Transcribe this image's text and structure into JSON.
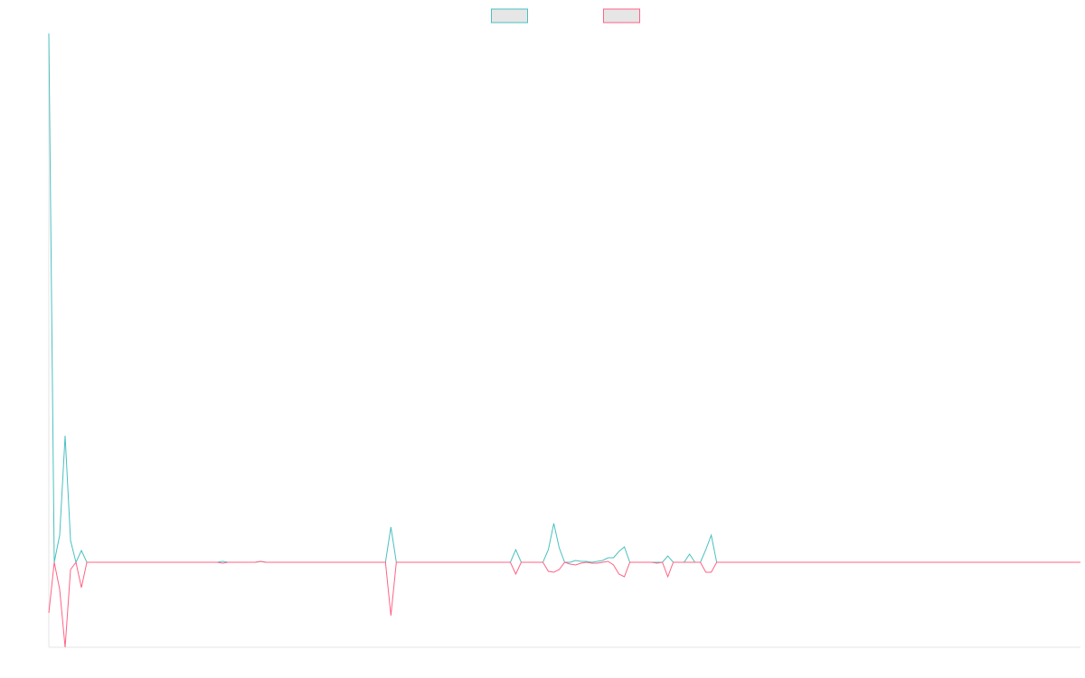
{
  "chart_data": {
    "type": "line",
    "ylim": [
      -94,
      585
    ],
    "legend": "top",
    "series": [
      {
        "color": "#4bc0c0",
        "values": [
          585,
          0,
          30,
          140,
          24,
          0,
          13,
          0,
          0,
          0,
          0,
          0,
          0,
          0,
          0,
          0,
          0,
          0,
          0,
          0,
          0,
          0,
          0,
          0,
          0,
          0,
          0,
          0,
          0,
          0,
          0,
          0,
          1,
          0,
          0,
          0,
          0,
          0,
          0,
          1,
          0,
          0,
          0,
          0,
          0,
          0,
          0,
          0,
          0,
          0,
          0,
          0,
          0,
          0,
          0,
          0,
          0,
          0,
          0,
          0,
          0,
          0,
          0,
          39,
          0,
          0,
          0,
          0,
          0,
          0,
          0,
          0,
          0,
          0,
          0,
          0,
          0,
          0,
          0,
          0,
          0,
          0,
          0,
          0,
          0,
          0,
          14,
          0,
          0,
          0,
          0,
          0,
          14,
          43,
          16,
          0,
          0,
          2,
          1,
          1,
          0,
          1,
          2,
          5,
          5,
          12,
          17,
          0,
          0,
          0,
          0,
          0,
          0,
          0,
          7,
          0,
          0,
          0,
          9,
          0,
          0,
          14,
          30,
          0,
          0,
          0,
          0,
          0,
          0,
          0,
          0,
          0,
          0,
          0,
          0,
          0,
          0,
          0,
          0,
          0,
          0,
          0,
          0,
          0,
          0,
          0,
          0,
          0,
          0,
          0,
          0,
          0,
          0,
          0,
          0,
          0,
          0,
          0,
          0,
          0,
          0,
          0,
          0,
          0,
          0,
          0,
          0,
          0,
          0,
          0,
          0,
          0,
          0,
          0,
          0,
          0,
          0,
          0,
          0,
          0,
          0,
          0,
          0,
          0,
          0,
          0,
          0,
          0,
          0,
          0,
          0
        ]
      },
      {
        "color": "#ff6384",
        "values": [
          -56,
          0,
          -30,
          -94,
          -8,
          0,
          -28,
          0,
          0,
          0,
          0,
          0,
          0,
          0,
          0,
          0,
          0,
          0,
          0,
          0,
          0,
          0,
          0,
          0,
          0,
          0,
          0,
          0,
          0,
          0,
          0,
          0,
          -1,
          0,
          0,
          0,
          0,
          0,
          0,
          1,
          0,
          0,
          0,
          0,
          0,
          0,
          0,
          0,
          0,
          0,
          0,
          0,
          0,
          0,
          0,
          0,
          0,
          0,
          0,
          0,
          0,
          0,
          0,
          -59,
          0,
          0,
          0,
          0,
          0,
          0,
          0,
          0,
          0,
          0,
          0,
          0,
          0,
          0,
          0,
          0,
          0,
          0,
          0,
          0,
          0,
          0,
          -13,
          0,
          0,
          0,
          0,
          0,
          -10,
          -11,
          -8,
          0,
          -2,
          -3,
          -1,
          0,
          -1,
          -1,
          0,
          1,
          -3,
          -13,
          -16,
          0,
          0,
          0,
          0,
          0,
          -1,
          0,
          -16,
          0,
          0,
          0,
          0,
          0,
          0,
          -11,
          -11,
          0,
          0,
          0,
          0,
          0,
          0,
          0,
          0,
          0,
          0,
          0,
          0,
          0,
          0,
          0,
          0,
          0,
          0,
          0,
          0,
          0,
          0,
          0,
          0,
          0,
          0,
          0,
          0,
          0,
          0,
          0,
          0,
          0,
          0,
          0,
          0,
          0,
          0,
          0,
          0,
          0,
          0,
          0,
          0,
          0,
          0,
          0,
          0,
          0,
          0,
          0,
          0,
          0,
          0,
          0,
          0,
          0,
          0,
          0,
          0,
          0,
          0,
          0,
          0,
          0,
          0,
          0,
          0
        ]
      }
    ]
  }
}
